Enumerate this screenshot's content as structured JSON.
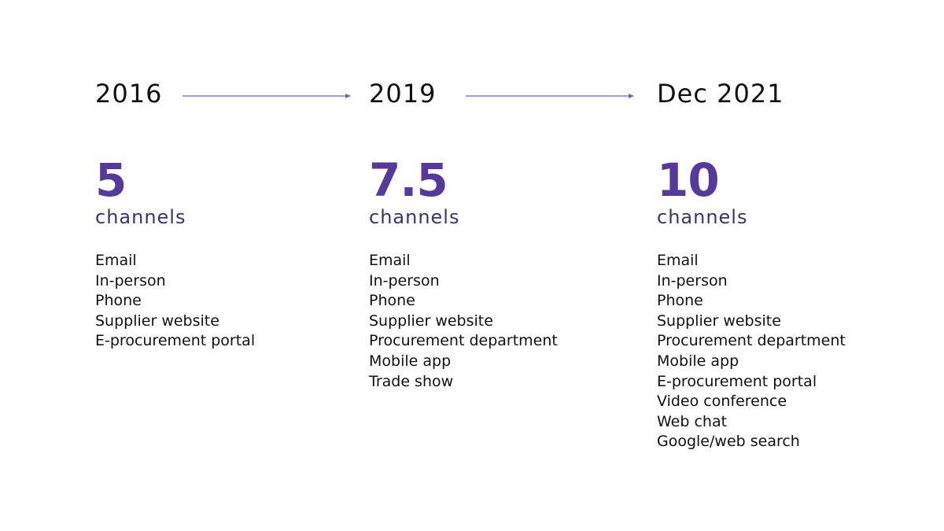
{
  "colors": {
    "accent": "#553a9c",
    "unit_text": "#3f336b",
    "arrow": "#7060c8"
  },
  "timeline": [
    {
      "year": "2016",
      "count": "5",
      "unit": "channels",
      "channels": [
        "Email",
        "In-person",
        "Phone",
        "Supplier website",
        "E-procurement portal"
      ]
    },
    {
      "year": "2019",
      "count": "7.5",
      "unit": "channels",
      "channels": [
        "Email",
        "In-person",
        "Phone",
        "Supplier website",
        "Procurement department",
        "Mobile app",
        "Trade show"
      ]
    },
    {
      "year": "Dec 2021",
      "count": "10",
      "unit": "channels",
      "channels": [
        "Email",
        "In-person",
        "Phone",
        "Supplier website",
        "Procurement department",
        "Mobile app",
        "E-procurement portal",
        "Video conference",
        "Web chat",
        "Google/web search"
      ]
    }
  ]
}
